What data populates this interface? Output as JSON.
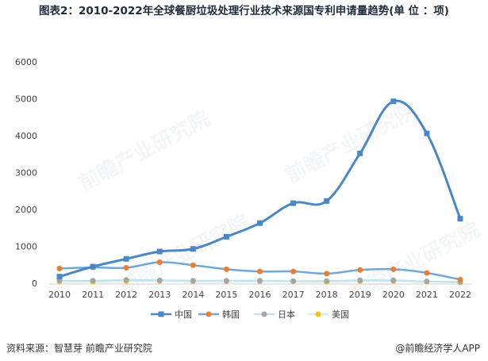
{
  "title": "图表2：2010-2022年全球餐厨垃圾处理行业技术来源国专利申请量趋势(单 位 ：项)",
  "source": "资料来源：智慧芽 前瞻产业研究院",
  "credit": "@前瞻经济学人APP",
  "watermark": "前瞻产业研究院",
  "chart_data": {
    "type": "line",
    "title": "图表2：2010-2022年全球餐厨垃圾处理行业技术来源国专利申请量趋势(单 位 ：项)",
    "xlabel": "",
    "ylabel": "",
    "x": [
      "2010",
      "2011",
      "2012",
      "2013",
      "2014",
      "2015",
      "2016",
      "2017",
      "2018",
      "2019",
      "2020",
      "2021",
      "2022"
    ],
    "ylim": [
      0,
      6000
    ],
    "yticks": [
      0,
      1000,
      2000,
      3000,
      4000,
      5000,
      6000
    ],
    "grid": false,
    "legend": "bottom",
    "series": [
      {
        "name": "中国",
        "color": "#4a86c8",
        "marker": "square",
        "values": [
          180,
          450,
          660,
          860,
          930,
          1260,
          1630,
          2170,
          2230,
          3520,
          4930,
          4060,
          1750
        ]
      },
      {
        "name": "韩国",
        "color": "#6fa8dc",
        "marker": "circle-orange",
        "values": [
          400,
          430,
          420,
          570,
          490,
          380,
          320,
          320,
          260,
          360,
          380,
          280,
          100
        ]
      },
      {
        "name": "日本",
        "color": "#bde3ec",
        "marker": "circle-gray",
        "values": [
          70,
          70,
          90,
          80,
          70,
          70,
          70,
          60,
          60,
          80,
          80,
          50,
          40
        ]
      },
      {
        "name": "美国",
        "color": "#d0eef4",
        "marker": "circle-yellow",
        "values": [
          50,
          40,
          60,
          60,
          50,
          50,
          50,
          50,
          40,
          60,
          60,
          40,
          20
        ]
      }
    ]
  }
}
